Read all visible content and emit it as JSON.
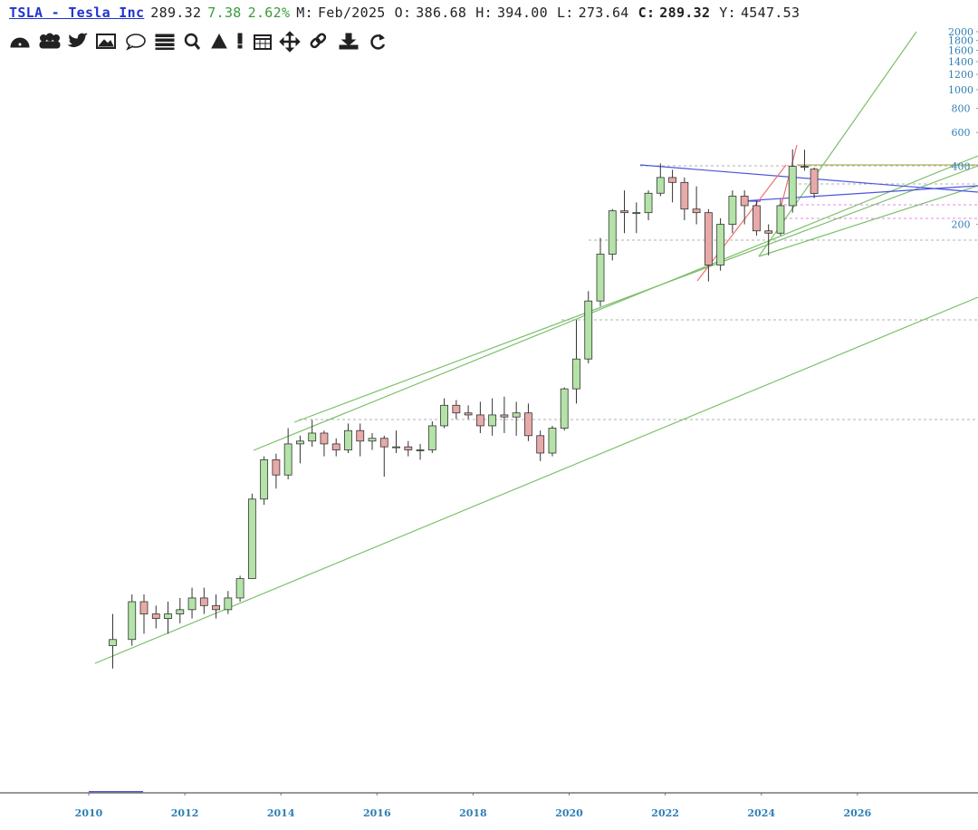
{
  "header": {
    "symbol": "TSLA - Tesla Inc",
    "price": "289.32",
    "change": "7.38",
    "change_pct": "2.62%",
    "fields": [
      {
        "label": "M:",
        "value": "Feb/2025"
      },
      {
        "label": "O:",
        "value": "386.68"
      },
      {
        "label": "H:",
        "value": "394.00"
      },
      {
        "label": "L:",
        "value": "273.64"
      },
      {
        "label": "C:",
        "value": "289.32"
      },
      {
        "label": "Y:",
        "value": "4547.53"
      }
    ]
  },
  "chart_data": {
    "type": "candlestick",
    "log_scale": true,
    "xlim": [
      2008.153,
      2028.51
    ],
    "xticks": [
      2010,
      2012,
      2014,
      2016,
      2018,
      2020,
      2022,
      2024,
      2026
    ],
    "ylim": [
      0.224,
      2110
    ],
    "yticks": [
      200,
      400,
      600,
      800,
      1000,
      1200,
      1400,
      1600,
      1800,
      2000
    ],
    "up_color": "#b4e3a8",
    "down_color": "#e7aaa8",
    "x": [
      2010.5,
      2010.9,
      2011.15,
      2011.4,
      2011.65,
      2011.9,
      2012.15,
      2012.4,
      2012.65,
      2012.9,
      2013.15,
      2013.4,
      2013.65,
      2013.9,
      2014.15,
      2014.4,
      2014.65,
      2014.9,
      2015.15,
      2015.4,
      2015.65,
      2015.9,
      2016.15,
      2016.4,
      2016.65,
      2016.9,
      2017.15,
      2017.4,
      2017.65,
      2017.9,
      2018.15,
      2018.4,
      2018.65,
      2018.9,
      2019.15,
      2019.4,
      2019.65,
      2019.9,
      2020.15,
      2020.4,
      2020.65,
      2020.9,
      2021.15,
      2021.4,
      2021.65,
      2021.9,
      2022.15,
      2022.4,
      2022.65,
      2022.9,
      2023.15,
      2023.4,
      2023.65,
      2023.9,
      2024.15,
      2024.4,
      2024.65,
      2024.9,
      2025.1
    ],
    "open": [
      1.3,
      1.4,
      2.2,
      1.9,
      1.8,
      1.9,
      2.0,
      2.3,
      2.1,
      2.0,
      2.3,
      2.9,
      7.5,
      12.0,
      10.0,
      14.5,
      15.0,
      16.5,
      14.5,
      13.5,
      17.0,
      15.0,
      15.5,
      14.0,
      14.0,
      13.5,
      13.5,
      18.0,
      23.0,
      21.0,
      20.5,
      18.0,
      20.5,
      20.0,
      21.0,
      16.0,
      13.0,
      17.5,
      28.0,
      40.0,
      80.0,
      140.0,
      235.0,
      230.0,
      230.0,
      290.0,
      350.0,
      330.0,
      240.0,
      230.0,
      123.0,
      200.0,
      280.0,
      250.0,
      185.0,
      180.0,
      250.0,
      400.0,
      386.68
    ],
    "high": [
      1.9,
      2.4,
      2.4,
      2.1,
      2.2,
      2.3,
      2.6,
      2.6,
      2.4,
      2.5,
      3.0,
      8.0,
      12.5,
      12.9,
      17.5,
      16.0,
      19.3,
      17.0,
      15.5,
      18.5,
      18.5,
      16.5,
      16.0,
      17.0,
      15.0,
      14.5,
      19.0,
      25.0,
      24.5,
      23.0,
      24.0,
      25.0,
      25.5,
      24.0,
      23.5,
      17.0,
      18.0,
      28.5,
      64.0,
      90.0,
      170.0,
      240.0,
      300.0,
      260.0,
      300.0,
      414.0,
      384.0,
      350.0,
      315.0,
      240.0,
      215.0,
      300.0,
      300.0,
      265.0,
      200.0,
      270.0,
      490.0,
      488.0,
      394.0
    ],
    "low": [
      0.99,
      1.3,
      1.5,
      1.6,
      1.5,
      1.7,
      1.8,
      1.9,
      1.8,
      1.9,
      2.2,
      2.9,
      7.0,
      8.5,
      9.5,
      11.5,
      14.0,
      12.5,
      12.5,
      13.0,
      12.5,
      13.5,
      9.8,
      13.0,
      12.5,
      12.0,
      13.0,
      17.5,
      19.5,
      19.5,
      16.5,
      16.0,
      16.5,
      16.0,
      15.0,
      11.8,
      12.5,
      17.0,
      23.5,
      38.0,
      75.0,
      130.0,
      180.0,
      180.0,
      210.0,
      280.0,
      260.0,
      210.0,
      200.0,
      101.0,
      115.0,
      180.0,
      200.0,
      175.0,
      138.0,
      175.0,
      230.0,
      380.0,
      273.64
    ],
    "close": [
      1.4,
      2.2,
      1.9,
      1.8,
      1.9,
      2.0,
      2.3,
      2.1,
      2.0,
      2.3,
      2.9,
      7.5,
      12.0,
      10.0,
      14.5,
      15.0,
      16.5,
      14.5,
      13.5,
      17.0,
      15.0,
      15.5,
      14.0,
      14.0,
      13.5,
      13.5,
      18.0,
      23.0,
      21.0,
      20.5,
      18.0,
      20.5,
      20.0,
      21.0,
      16.0,
      13.0,
      17.5,
      28.0,
      40.0,
      80.0,
      140.0,
      235.0,
      230.0,
      230.0,
      290.0,
      350.0,
      330.0,
      240.0,
      230.0,
      123.0,
      200.0,
      280.0,
      250.0,
      185.0,
      180.0,
      250.0,
      400.0,
      400.0,
      289.32
    ]
  }
}
